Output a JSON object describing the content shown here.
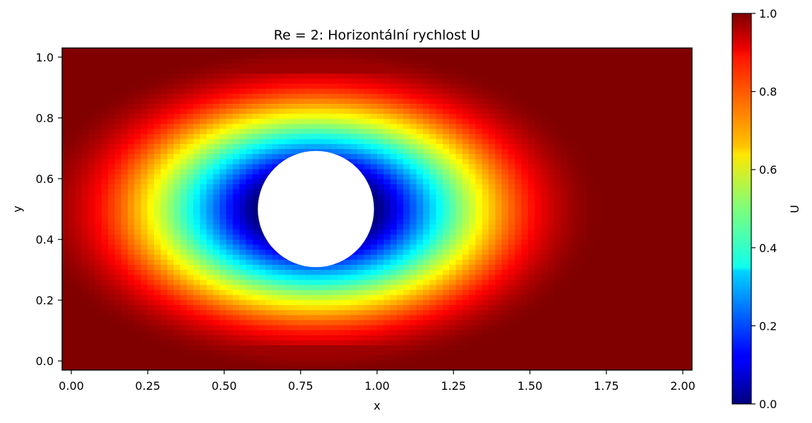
{
  "chart_data": {
    "type": "heatmap",
    "title": "Re = 2: Horizontální rychlost U",
    "xlabel": "x",
    "ylabel": "y",
    "xlim": [
      -0.03,
      2.03
    ],
    "ylim": [
      -0.03,
      1.03
    ],
    "x_ticks": [
      "0.00",
      "0.25",
      "0.50",
      "0.75",
      "1.00",
      "1.25",
      "1.50",
      "1.75",
      "2.00"
    ],
    "y_ticks": [
      "0.0",
      "0.2",
      "0.4",
      "0.6",
      "0.8",
      "1.0"
    ],
    "colorbar": {
      "label": "U",
      "colormap": "jet",
      "range": [
        0.0,
        1.0
      ],
      "ticks": [
        "0.0",
        "0.2",
        "0.4",
        "0.6",
        "0.8",
        "1.0"
      ]
    },
    "obstacle": {
      "shape": "circle",
      "center": [
        0.8,
        0.5
      ],
      "radius": 0.19,
      "color": "#ffffff"
    },
    "field": {
      "description_values": "U = 1.0 near domain edges, decreasing toward 0 at the cylinder surface",
      "far_value": 1.0,
      "near_obstacle_value": 0.0
    }
  }
}
